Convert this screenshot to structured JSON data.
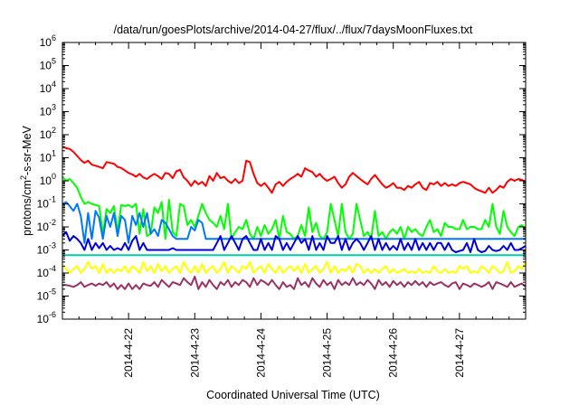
{
  "chart_data": {
    "type": "line",
    "title": "/data/run/goesPlots/archive/2014-04-27/flux/../flux/7daysMoonFluxes.txt",
    "xlabel": "Coordinated Universal Time (UTC)",
    "ylabel": {
      "base": "protons/cm",
      "sup": "2",
      "rest": "-s-sr-MeV"
    },
    "y_scale": "log",
    "ylim": [
      1e-06,
      1000000.0
    ],
    "y_ticks": [
      {
        "value": 1e-06,
        "exp": "-6"
      },
      {
        "value": 1e-05,
        "exp": "-5"
      },
      {
        "value": 0.0001,
        "exp": "-4"
      },
      {
        "value": 0.001,
        "exp": "-3"
      },
      {
        "value": 0.01,
        "exp": "-2"
      },
      {
        "value": 0.1,
        "exp": "-1"
      },
      {
        "value": 1,
        "exp": "0"
      },
      {
        "value": 10,
        "exp": "1"
      },
      {
        "value": 100,
        "exp": "2"
      },
      {
        "value": 1000.0,
        "exp": "3"
      },
      {
        "value": 10000.0,
        "exp": "4"
      },
      {
        "value": 100000.0,
        "exp": "5"
      },
      {
        "value": 1000000.0,
        "exp": "6"
      }
    ],
    "x_ticks": [
      "2014-4-22",
      "2014-4-23",
      "2014-4-24",
      "2014-4-25",
      "2014-4-26",
      "2014-4-27"
    ],
    "x_range": [
      "2014-04-21 00:00",
      "2014-04-27 23:59"
    ],
    "grid": false,
    "series": [
      {
        "color": "#ff0000",
        "values": [
          30,
          26,
          24,
          18,
          12,
          8,
          6,
          7.5,
          5,
          4.5,
          4,
          3.5,
          6.5,
          6,
          5.5,
          4,
          3.6,
          2.8,
          2.2,
          1.9,
          1.5,
          2.0,
          1.4,
          1.2,
          1.6,
          2.0,
          1.6,
          1.2,
          2.2,
          2.0,
          1.3,
          2.6,
          3.0,
          1.4,
          1.0,
          0.6,
          1.0,
          0.7,
          0.9,
          0.6,
          1.6,
          1.0,
          2.2,
          1.3,
          1.5,
          1.0,
          0.8,
          1.2,
          0.8,
          1.0,
          7.5,
          6.5,
          2.0,
          0.8,
          0.6,
          0.8,
          0.5,
          0.3,
          0.7,
          0.9,
          0.6,
          0.9,
          1.2,
          1.5,
          2.0,
          1.5,
          3.5,
          2.8,
          2.4,
          1.5,
          2.0,
          1.3,
          1.0,
          1.2,
          1.5,
          0.8,
          0.5,
          0.7,
          1.5,
          2.2,
          1.6,
          1.2,
          0.9,
          0.7,
          1.2,
          1.8,
          1.1,
          0.7,
          0.5,
          0.6,
          0.8,
          0.5,
          0.5,
          0.4,
          0.6,
          0.5,
          0.7,
          0.9,
          0.5,
          0.4,
          0.8,
          0.7,
          0.9,
          0.6,
          0.8,
          0.6,
          0.7,
          0.6,
          0.8,
          0.9,
          0.8,
          0.7,
          0.5,
          0.4,
          0.35,
          0.3,
          0.5,
          0.3,
          0.4,
          0.6,
          0.5,
          0.9,
          1.2,
          1.0,
          1.2,
          1.1,
          0.9
        ]
      },
      {
        "color": "#00ff00",
        "values": [
          1.5,
          1.0,
          1.2,
          0.8,
          0.5,
          0.2,
          0.1,
          0.12,
          0.1,
          0.09,
          0.08,
          0.005,
          0.06,
          0.04,
          0.08,
          0.006,
          0.09,
          0.08,
          0.09,
          0.07,
          0.1,
          0.005,
          0.06,
          0.004,
          0.005,
          0.07,
          0.04,
          0.12,
          0.003,
          0.15,
          0.006,
          0.004,
          0.1,
          0.08,
          0.012,
          0.02,
          0.01,
          0.03,
          0.1,
          0.04,
          0.02,
          0.015,
          0.01,
          0.03,
          0.008,
          0.1,
          0.003,
          0.006,
          0.01,
          0.008,
          0.02,
          0.005,
          0.003,
          0.01,
          0.004,
          0.012,
          0.005,
          0.008,
          0.02,
          0.003,
          0.03,
          0.006,
          0.005,
          0.003,
          0.004,
          0.012,
          0.004,
          0.07,
          0.006,
          0.015,
          0.004,
          0.003,
          0.006,
          0.1,
          0.02,
          0.004,
          0.1,
          0.006,
          0.003,
          0.005,
          0.1,
          0.02,
          0.004,
          0.006,
          0.003,
          0.05,
          0.004,
          0.006,
          0.003,
          0.006,
          0.008,
          0.005,
          0.01,
          0.003,
          0.01,
          0.006,
          0.008,
          0.005,
          0.004,
          0.01,
          0.02,
          0.006,
          0.008,
          0.004,
          0.015,
          0.01,
          0.01,
          0.008,
          0.008,
          0.02,
          0.008,
          0.01,
          0.01,
          0.008,
          0.008,
          0.02,
          0.01,
          0.1,
          0.01,
          0.005,
          0.05,
          0.01,
          0.006,
          0.004,
          0.01,
          0.012,
          0.008
        ]
      },
      {
        "color": "#0077ff",
        "values": [
          0.1,
          0.12,
          0.08,
          0.05,
          0.1,
          0.03,
          0.002,
          0.04,
          0.003,
          0.05,
          0.025,
          0.003,
          0.03,
          0.01,
          0.04,
          0.004,
          0.03,
          0.02,
          0.002,
          0.03,
          0.012,
          0.04,
          0.01,
          0.04,
          0.005,
          0.008,
          0.004,
          0.02,
          0.015,
          0.008,
          0.004,
          0.003,
          0.003,
          0.003,
          0.003,
          0.01,
          0.007,
          0.02,
          0.015,
          0.003,
          0.003,
          0.003,
          0.003,
          0.003,
          0.003,
          0.003,
          0.003,
          0.003,
          0.003,
          0.003,
          0.003,
          0.003,
          0.003,
          0.003,
          0.003,
          0.003,
          0.003,
          0.003,
          0.003,
          0.003,
          0.003,
          0.003,
          0.003,
          0.003,
          0.003,
          0.003,
          0.003,
          0.003,
          0.003,
          0.003,
          0.003,
          0.003,
          0.003,
          0.003,
          0.003,
          0.003,
          0.003,
          0.003,
          0.003,
          0.003,
          0.003,
          0.003,
          0.003,
          0.003,
          0.003,
          0.003,
          0.003,
          0.003,
          0.003,
          0.003,
          0.003,
          0.003,
          0.003,
          0.003,
          0.003,
          0.003,
          0.003,
          0.003,
          0.003,
          0.003,
          0.003,
          0.003,
          0.003,
          0.003,
          0.003,
          0.003,
          0.003,
          0.003,
          0.003,
          0.003,
          0.003,
          0.003,
          0.003,
          0.003,
          0.003,
          0.003,
          0.003,
          0.003,
          0.003,
          0.003,
          0.003,
          0.003,
          0.003,
          0.003,
          0.003,
          0.003,
          0.003
        ]
      },
      {
        "color": "#0000dd",
        "values": [
          0.004,
          0.006,
          0.0025,
          0.004,
          0.003,
          0.002,
          0.001,
          0.003,
          0.001,
          0.002,
          0.0012,
          0.002,
          0.001,
          0.0015,
          0.001,
          0.0012,
          0.001,
          0.002,
          0.001,
          0.0025,
          0.004,
          0.001,
          0.002,
          0.001,
          0.001,
          0.001,
          0.001,
          0.001,
          0.001,
          0.001,
          0.0012,
          0.001,
          0.001,
          0.001,
          0.001,
          0.001,
          0.001,
          0.001,
          0.001,
          0.001,
          0.001,
          0.001,
          0.002,
          0.004,
          0.001,
          0.002,
          0.004,
          0.002,
          0.001,
          0.003,
          0.004,
          0.002,
          0.001,
          0.001,
          0.003,
          0.001,
          0.002,
          0.001,
          0.004,
          0.003,
          0.001,
          0.002,
          0.001,
          0.002,
          0.004,
          0.002,
          0.003,
          0.001,
          0.004,
          0.001,
          0.002,
          0.001,
          0.004,
          0.002,
          0.002,
          0.004,
          0.001,
          0.003,
          0.001,
          0.002,
          0.003,
          0.002,
          0.001,
          0.002,
          0.004,
          0.001,
          0.003,
          0.001,
          0.002,
          0.001,
          0.0015,
          0.001,
          0.003,
          0.001,
          0.002,
          0.001,
          0.003,
          0.001,
          0.002,
          0.001,
          0.002,
          0.001,
          0.002,
          0.002,
          0.001,
          0.002,
          0.001,
          0.0008,
          0.0009,
          0.001,
          0.002,
          0.0008,
          0.003,
          0.001,
          0.0008,
          0.0009,
          0.0015,
          0.001,
          0.0009,
          0.001,
          0.0015,
          0.001,
          0.002,
          0.001,
          0.001,
          0.0012,
          0.0015
        ]
      },
      {
        "color": "#00ccaa",
        "values": [
          0.0006,
          0.0006,
          0.0006,
          0.0006,
          0.0006,
          0.0006,
          0.0006,
          0.0006,
          0.0006,
          0.0006,
          0.0006,
          0.0006,
          0.0006,
          0.0006,
          0.0006,
          0.0006,
          0.0006,
          0.0006,
          0.0006,
          0.0006,
          0.0006,
          0.0006,
          0.0006,
          0.0006,
          0.0006,
          0.0006,
          0.0006,
          0.0006,
          0.0006,
          0.0006,
          0.0006,
          0.0006,
          0.0006,
          0.0006,
          0.0006,
          0.0006,
          0.0006,
          0.0006,
          0.0006,
          0.0006,
          0.0006,
          0.0006,
          0.0006,
          0.0006,
          0.0006,
          0.0006,
          0.0006,
          0.0006,
          0.0006,
          0.0006,
          0.0006,
          0.0006,
          0.0006,
          0.0006,
          0.0006,
          0.0006,
          0.0006,
          0.0006,
          0.0006,
          0.0006,
          0.0006,
          0.0006,
          0.0006,
          0.0006,
          0.0006,
          0.0006,
          0.0006,
          0.0006,
          0.0006,
          0.0006,
          0.0006,
          0.0006,
          0.0006,
          0.0006,
          0.0006,
          0.0006,
          0.0006,
          0.0006,
          0.0006,
          0.0006,
          0.0006,
          0.0006,
          0.0006,
          0.0006,
          0.0006,
          0.0006,
          0.0006,
          0.0006,
          0.0006,
          0.0006,
          0.0006,
          0.0006,
          0.0006,
          0.0006,
          0.0006,
          0.0006,
          0.0006,
          0.0006,
          0.0006,
          0.0006,
          0.0006,
          0.0006,
          0.0006,
          0.0006,
          0.0006,
          0.0006,
          0.0006,
          0.0006,
          0.0006,
          0.0006,
          0.0006,
          0.0006,
          0.0006,
          0.0006,
          0.0006,
          0.0006,
          0.0006,
          0.0006,
          0.0006,
          0.0006,
          0.0006,
          0.0006,
          0.0006,
          0.0006,
          0.0006,
          0.0006,
          0.0006
        ]
      },
      {
        "color": "#ffff00",
        "values": [
          0.0002,
          0.00015,
          0.0001,
          0.00015,
          0.0002,
          0.0001,
          0.00015,
          0.0003,
          0.00015,
          0.0002,
          0.0001,
          0.00025,
          0.0001,
          0.00015,
          0.0001,
          0.00015,
          0.00012,
          0.0002,
          0.0001,
          0.0002,
          0.00015,
          0.0001,
          0.0003,
          0.00012,
          0.0002,
          0.0001,
          0.00025,
          0.00012,
          0.0002,
          0.0001,
          0.00015,
          0.0002,
          0.0001,
          0.0003,
          0.00015,
          0.0001,
          0.0002,
          0.0001,
          0.00025,
          0.0001,
          0.00015,
          0.0002,
          0.0001,
          0.00015,
          0.0003,
          0.0001,
          0.0002,
          0.00015,
          0.0001,
          0.0002,
          0.00015,
          0.0003,
          0.0001,
          0.00015,
          0.0002,
          0.0001,
          0.00025,
          0.00015,
          0.0001,
          0.0002,
          0.0001,
          0.00015,
          0.0002,
          0.00012,
          0.0002,
          0.0001,
          0.00025,
          0.0001,
          0.00015,
          0.0002,
          0.0001,
          0.00015,
          0.0003,
          0.0001,
          0.0002,
          0.0001,
          0.00015,
          0.00012,
          0.0002,
          0.0001,
          0.00025,
          0.0002,
          0.0001,
          0.00015,
          0.0001,
          0.00015,
          0.0001,
          0.00015,
          0.0002,
          0.0001,
          0.00015,
          0.0001,
          0.00012,
          0.00015,
          0.0001,
          0.00012,
          0.0001,
          0.00015,
          0.0001,
          0.00012,
          0.0001,
          0.0002,
          0.00012,
          0.0001,
          0.00015,
          0.0001,
          0.00012,
          0.0001,
          0.0002,
          0.00015,
          0.0002,
          0.0001,
          0.00012,
          0.0001,
          0.0002,
          0.00015,
          0.0001,
          0.0002,
          0.00015,
          0.0001,
          0.00012,
          0.0003,
          0.0001,
          0.00012,
          0.0002,
          0.00015,
          0.0003
        ]
      },
      {
        "color": "#993366",
        "values": [
          3e-05,
          3e-05,
          2.8e-05,
          2.5e-05,
          3e-05,
          4e-05,
          2.5e-05,
          3e-05,
          3.5e-05,
          2.8e-05,
          3.5e-05,
          3e-05,
          4e-05,
          2.5e-05,
          3.5e-05,
          2e-05,
          3e-05,
          2e-05,
          3.5e-05,
          2e-05,
          3e-05,
          2e-05,
          3.5e-05,
          3e-05,
          2.8e-05,
          4e-05,
          2.5e-05,
          5e-05,
          3.5e-05,
          2.5e-05,
          4e-05,
          3.5e-05,
          3e-05,
          6e-05,
          4e-05,
          3e-05,
          7e-05,
          2e-05,
          4e-05,
          2.5e-05,
          5e-05,
          3e-05,
          2e-05,
          4e-05,
          3e-05,
          5e-05,
          2.5e-05,
          4e-05,
          3e-05,
          5e-05,
          4e-05,
          2.5e-05,
          6e-05,
          3e-05,
          5e-05,
          4e-05,
          3e-05,
          5e-05,
          3e-05,
          2e-05,
          4e-05,
          2.5e-05,
          3e-05,
          2e-05,
          6e-05,
          3e-05,
          4e-05,
          2.5e-05,
          6e-05,
          3.5e-05,
          2.5e-05,
          5e-05,
          3e-05,
          4e-05,
          2e-05,
          5e-05,
          3e-05,
          4e-05,
          3e-05,
          6e-05,
          3e-05,
          4e-05,
          3e-05,
          5e-05,
          3.5e-05,
          2e-05,
          5e-05,
          3e-05,
          4e-05,
          2.5e-05,
          4.5e-05,
          3e-05,
          4e-05,
          2.5e-05,
          4e-05,
          3e-05,
          4.5e-05,
          3e-05,
          4e-05,
          2.5e-05,
          4e-05,
          3e-05,
          3.5e-05,
          4e-05,
          3e-05,
          2.5e-05,
          3.5e-05,
          4e-05,
          2e-05,
          3.5e-05,
          3e-05,
          2.5e-05,
          3.5e-05,
          3e-05,
          2.5e-05,
          3e-05,
          4e-05,
          2e-05,
          4e-05,
          3.5e-05,
          3e-05,
          2.5e-05,
          4e-05,
          2.5e-05,
          3e-05,
          3.5e-05,
          2.5e-05
        ]
      }
    ]
  }
}
